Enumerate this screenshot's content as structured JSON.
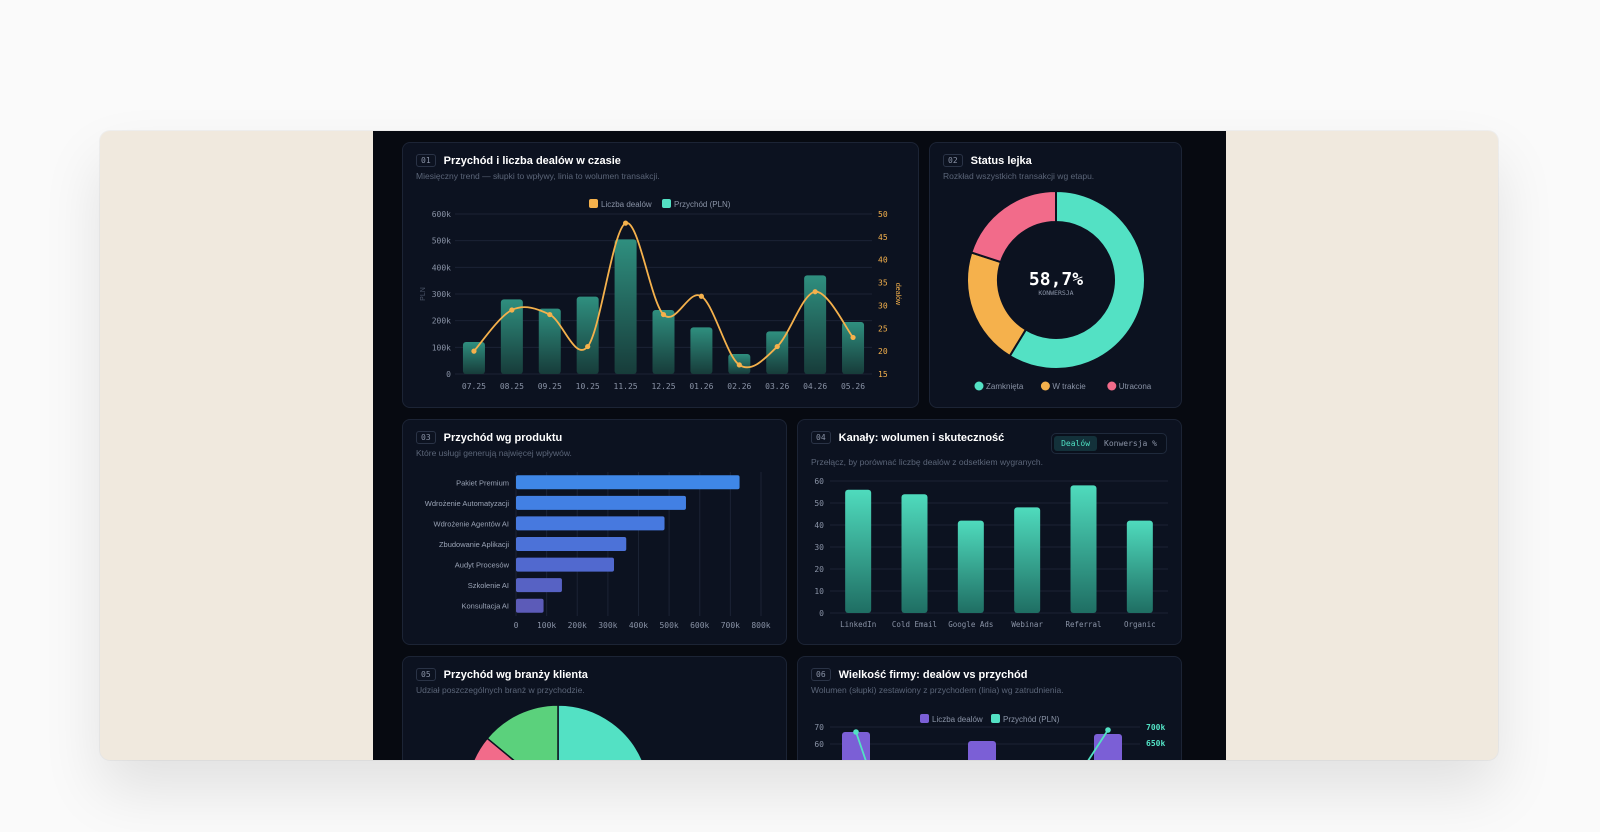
{
  "colors": {
    "teal": "#53e1c4",
    "orange": "#f5b14c",
    "pink": "#f26b8a",
    "green": "#5bd17c",
    "purple": "#7b5fd6",
    "blue": "#3e86e6"
  },
  "cards": {
    "c1": {
      "num": "01",
      "title": "Przychód i liczba dealów w czasie",
      "subtitle": "Miesięczny trend — słupki to wpływy, linia to wolumen transakcji."
    },
    "c2": {
      "num": "02",
      "title": "Status lejka",
      "subtitle": "Rozkład wszystkich transakcji wg etapu.",
      "center_value": "58,7%",
      "center_label": "KONWERSJA"
    },
    "c3": {
      "num": "03",
      "title": "Przychód wg produktu",
      "subtitle": "Które usługi generują najwięcej wpływów."
    },
    "c4": {
      "num": "04",
      "title": "Kanały: wolumen i skuteczność",
      "subtitle": "Przełącz, by porównać liczbę dealów z odsetkiem wygranych.",
      "toggle": [
        "Dealów",
        "Konwersja %"
      ]
    },
    "c5": {
      "num": "05",
      "title": "Przychód wg branży klienta",
      "subtitle": "Udział poszczególnych branż w przychodzie."
    },
    "c6": {
      "num": "06",
      "title": "Wielkość firmy: dealów vs przychód",
      "subtitle": "Wolumen (słupki) zestawiony z przychodem (linia) wg zatrudnienia."
    }
  },
  "chart_data": [
    {
      "type": "bar",
      "title": "Przychód i liczba dealów w czasie",
      "categories": [
        "07.25",
        "08.25",
        "09.25",
        "10.25",
        "11.25",
        "12.25",
        "01.26",
        "02.26",
        "03.26",
        "04.26",
        "05.26"
      ],
      "series": [
        {
          "name": "Przychód (PLN)",
          "kind": "bar",
          "axis": "left",
          "values": [
            120000,
            280000,
            245000,
            290000,
            505000,
            240000,
            175000,
            75000,
            160000,
            370000,
            195000
          ]
        },
        {
          "name": "Liczba dealów",
          "kind": "line",
          "axis": "right",
          "values": [
            20,
            29,
            28,
            21,
            48,
            28,
            32,
            17,
            21,
            33,
            23
          ]
        }
      ],
      "ylabel": "PLN",
      "y2label": "dealów",
      "ylim": [
        0,
        600000
      ],
      "y2lim": [
        15,
        50
      ],
      "yticks": [
        "0",
        "100k",
        "200k",
        "300k",
        "400k",
        "500k",
        "600k"
      ],
      "y2ticks": [
        "15",
        "20",
        "25",
        "30",
        "35",
        "40",
        "45",
        "50"
      ],
      "legend": [
        "Liczba dealów",
        "Przychód (PLN)"
      ],
      "legend_position": "top"
    },
    {
      "type": "pie",
      "title": "Status lejka",
      "categories": [
        "Zamknięta",
        "W trakcie",
        "Utracona"
      ],
      "values": [
        58.7,
        21.3,
        20.0
      ],
      "center_value": "58,7%",
      "center_label": "KONWERSJA",
      "legend_position": "bottom"
    },
    {
      "type": "bar",
      "orientation": "horizontal",
      "title": "Przychód wg produktu",
      "categories": [
        "Pakiet Premium",
        "Wdrożenie Automatyzacji",
        "Wdrożenie Agentów AI",
        "Zbudowanie Aplikacji",
        "Audyt Procesów",
        "Szkolenie AI",
        "Konsultacja AI"
      ],
      "values": [
        730000,
        555000,
        485000,
        360000,
        320000,
        150000,
        90000
      ],
      "xlim": [
        0,
        800000
      ],
      "xticks": [
        "0",
        "100k",
        "200k",
        "300k",
        "400k",
        "500k",
        "600k",
        "700k",
        "800k"
      ]
    },
    {
      "type": "bar",
      "title": "Kanały: wolumen i skuteczność",
      "categories": [
        "LinkedIn",
        "Cold Email",
        "Google Ads",
        "Webinar",
        "Referral",
        "Organic"
      ],
      "values": [
        56,
        54,
        42,
        48,
        58,
        42
      ],
      "ylim": [
        0,
        60
      ],
      "yticks": [
        "0",
        "10",
        "20",
        "30",
        "40",
        "50",
        "60"
      ]
    },
    {
      "type": "pie",
      "title": "Przychód wg branży klienta",
      "values": [
        40,
        14,
        6
      ]
    },
    {
      "type": "bar",
      "title": "Wielkość firmy: dealów vs przychód",
      "legend": [
        "Liczba dealów",
        "Przychód (PLN)"
      ],
      "yticks": [
        "70",
        "60"
      ],
      "y2ticks": [
        "700k",
        "650k"
      ],
      "legend_position": "top"
    }
  ]
}
